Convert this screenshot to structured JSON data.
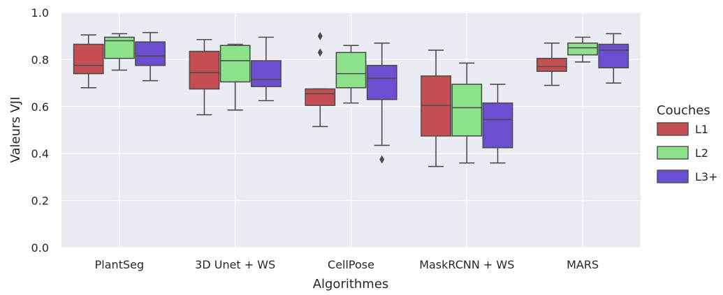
{
  "chart_data": {
    "type": "box",
    "title": "",
    "xlabel": "Algorithmes",
    "ylabel": "Valeurs VJI",
    "ylim": [
      0,
      1
    ],
    "yticks": [
      "0.0",
      "0.2",
      "0.4",
      "0.6",
      "0.8",
      "1.0"
    ],
    "grid": true,
    "legend": {
      "title": "Couches",
      "placement": "right"
    },
    "categories": [
      "PlantSeg",
      "3D Unet + WS",
      "CellPose",
      "MaskRCNN + WS",
      "MARS"
    ],
    "series": [
      {
        "name": "L1",
        "color": "#c44e52",
        "boxes": [
          {
            "min": 0.68,
            "q1": 0.74,
            "median": 0.775,
            "q3": 0.865,
            "max": 0.905,
            "outliers": []
          },
          {
            "min": 0.565,
            "q1": 0.675,
            "median": 0.745,
            "q3": 0.835,
            "max": 0.885,
            "outliers": []
          },
          {
            "min": 0.515,
            "q1": 0.605,
            "median": 0.655,
            "q3": 0.675,
            "max": 0.675,
            "outliers": [
              0.9,
              0.83
            ]
          },
          {
            "min": 0.345,
            "q1": 0.475,
            "median": 0.605,
            "q3": 0.73,
            "max": 0.84,
            "outliers": []
          },
          {
            "min": 0.69,
            "q1": 0.75,
            "median": 0.77,
            "q3": 0.805,
            "max": 0.87,
            "outliers": []
          }
        ]
      },
      {
        "name": "L2",
        "color": "#8be28b",
        "boxes": [
          {
            "min": 0.755,
            "q1": 0.805,
            "median": 0.88,
            "q3": 0.895,
            "max": 0.91,
            "outliers": []
          },
          {
            "min": 0.585,
            "q1": 0.705,
            "median": 0.795,
            "q3": 0.86,
            "max": 0.865,
            "outliers": []
          },
          {
            "min": 0.615,
            "q1": 0.68,
            "median": 0.74,
            "q3": 0.83,
            "max": 0.86,
            "outliers": []
          },
          {
            "min": 0.36,
            "q1": 0.475,
            "median": 0.595,
            "q3": 0.695,
            "max": 0.785,
            "outliers": []
          },
          {
            "min": 0.79,
            "q1": 0.82,
            "median": 0.85,
            "q3": 0.87,
            "max": 0.895,
            "outliers": []
          }
        ]
      },
      {
        "name": "L3+",
        "color": "#6a4fd0",
        "boxes": [
          {
            "min": 0.71,
            "q1": 0.775,
            "median": 0.815,
            "q3": 0.875,
            "max": 0.915,
            "outliers": []
          },
          {
            "min": 0.625,
            "q1": 0.685,
            "median": 0.715,
            "q3": 0.795,
            "max": 0.895,
            "outliers": []
          },
          {
            "min": 0.435,
            "q1": 0.63,
            "median": 0.72,
            "q3": 0.775,
            "max": 0.87,
            "outliers": [
              0.375
            ]
          },
          {
            "min": 0.36,
            "q1": 0.425,
            "median": 0.545,
            "q3": 0.615,
            "max": 0.695,
            "outliers": []
          },
          {
            "min": 0.7,
            "q1": 0.765,
            "median": 0.84,
            "q3": 0.865,
            "max": 0.91,
            "outliers": []
          }
        ]
      }
    ]
  },
  "style": {
    "plot_background": "#eaeaf2",
    "grid_color": "#ffffff",
    "line_color": "#4d4d4d",
    "text_color": "#262626"
  }
}
